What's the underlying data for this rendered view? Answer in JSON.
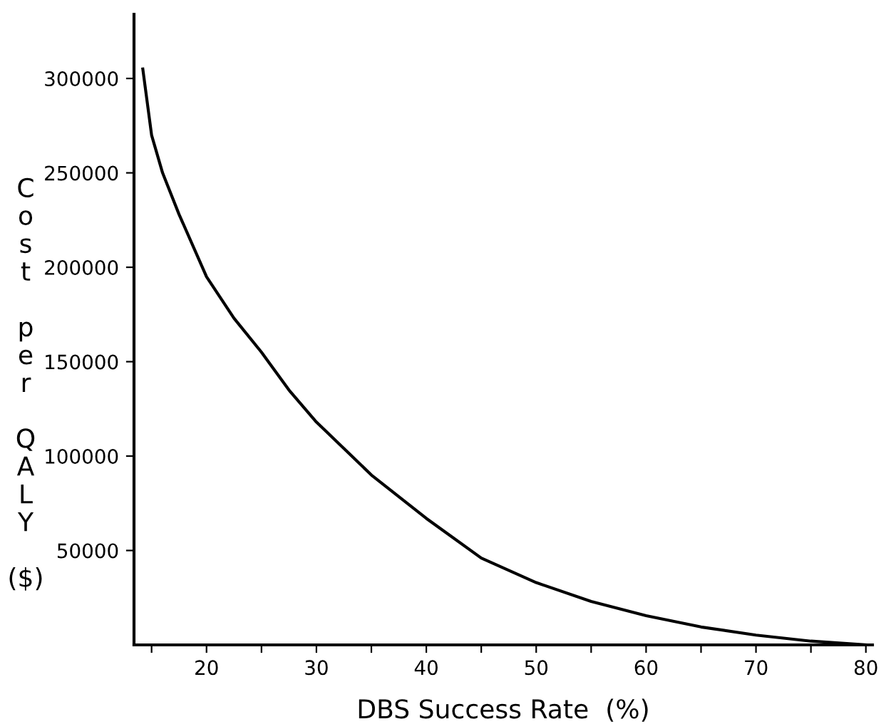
{
  "chart_data": {
    "type": "line",
    "xlabel": "DBS Success Rate  (%)",
    "ylabel": "Cost per QALY ($)",
    "x": [
      14.2,
      15,
      16,
      17.5,
      20,
      22.5,
      25,
      27.5,
      30,
      35,
      40,
      45,
      50,
      55,
      60,
      65,
      70,
      75,
      80
    ],
    "series": [
      {
        "color": "#000000",
        "values": [
          305000,
          270000,
          250000,
          228000,
          195000,
          173000,
          155000,
          135000,
          118000,
          90000,
          67000,
          46000,
          33000,
          23000,
          15500,
          9500,
          5200,
          2000,
          0
        ]
      }
    ],
    "xlim": [
      13.4,
      80.6
    ],
    "ylim": [
      0,
      334000
    ],
    "xticks": [
      {
        "value": 15,
        "label": null
      },
      20,
      {
        "value": 25,
        "label": null
      },
      30,
      {
        "value": 35,
        "label": null
      },
      40,
      {
        "value": 45,
        "label": null
      },
      50,
      {
        "value": 55,
        "label": null
      },
      60,
      {
        "value": 65,
        "label": null
      },
      70,
      {
        "value": 75,
        "label": null
      },
      80
    ],
    "yticks": [
      50000,
      100000,
      150000,
      200000,
      250000,
      300000
    ],
    "grid": false,
    "legend": false,
    "marker": "none",
    "line_style": "solid"
  }
}
